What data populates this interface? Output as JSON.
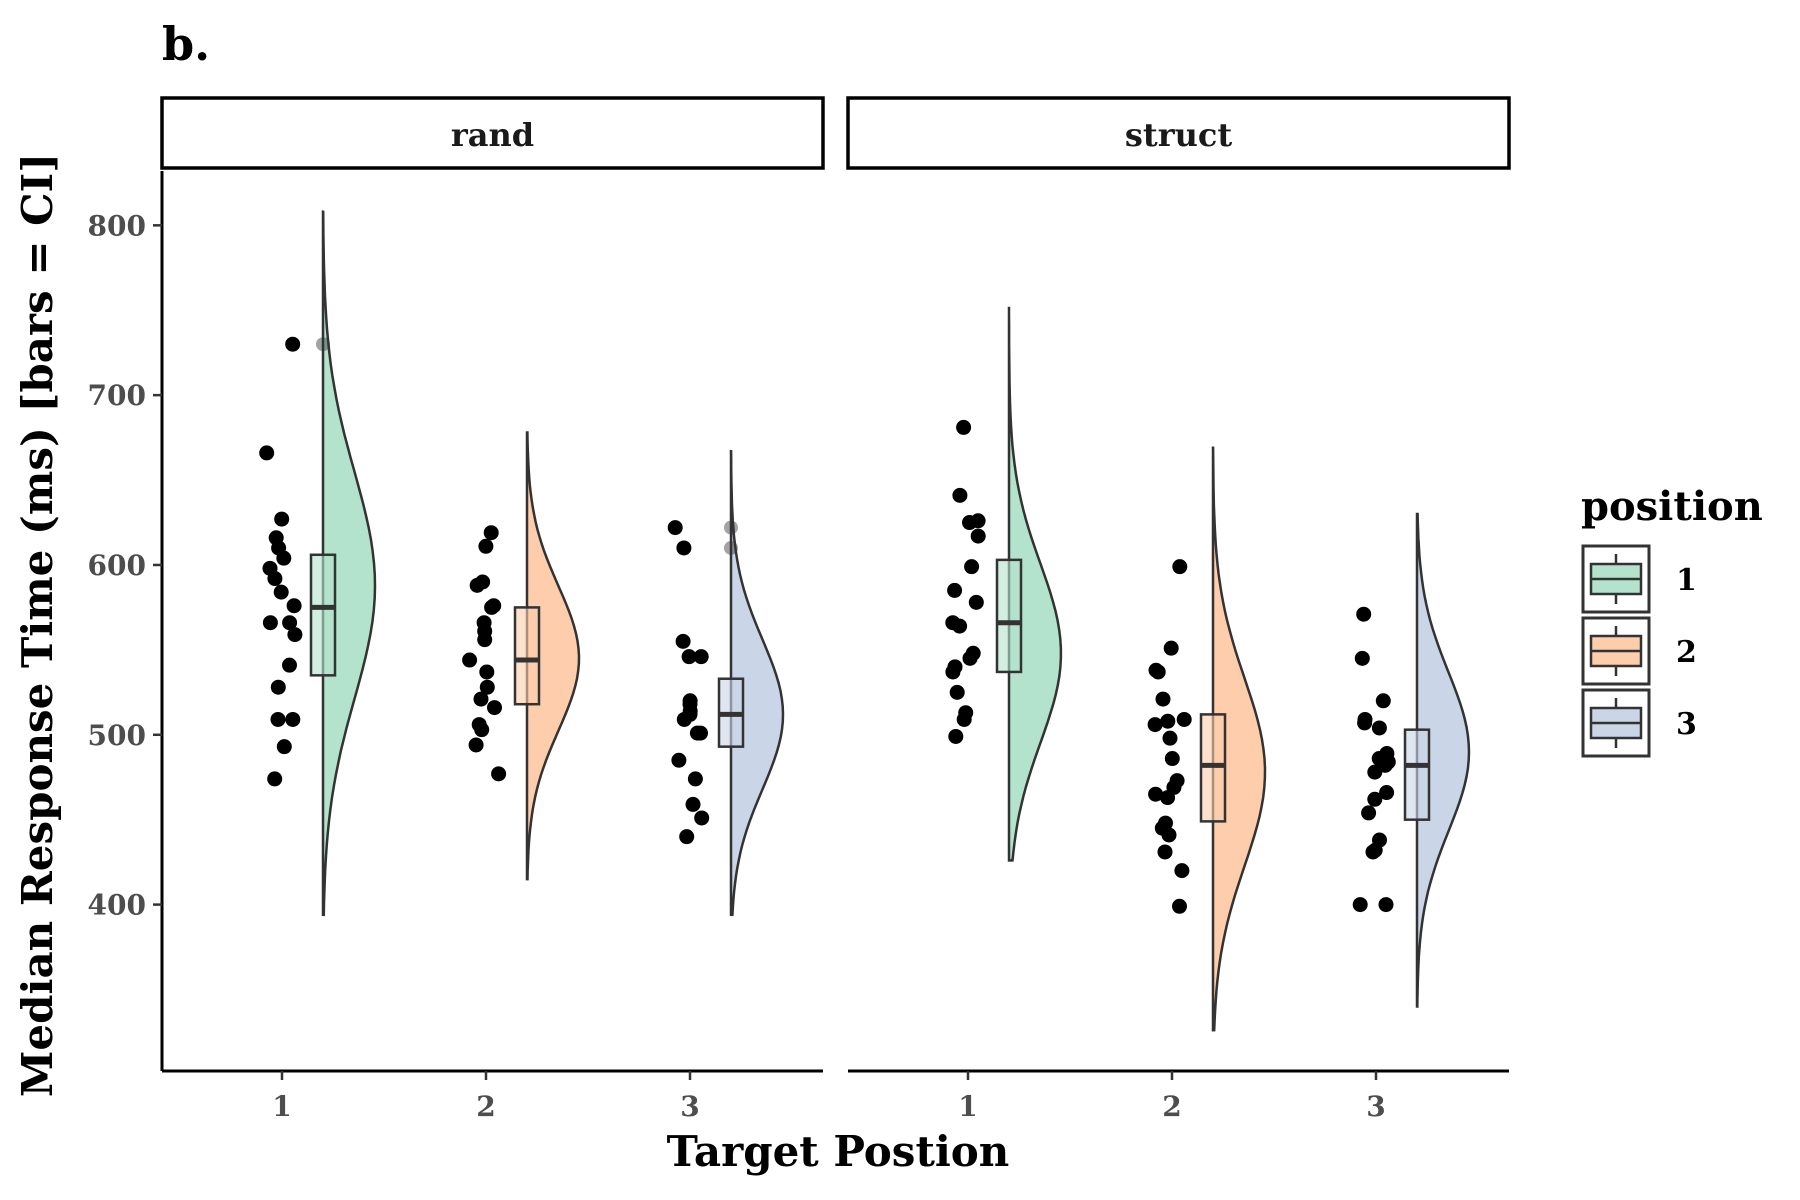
{
  "chart_data": {
    "type": "raincloud",
    "panel_tag": "b.",
    "xlabel": "Target Postion",
    "ylabel": "Median Response Time (ms) [bars = CI]",
    "ylim": [
      302,
      832
    ],
    "yticks": [
      400,
      500,
      600,
      700,
      800
    ],
    "categories": [
      "1",
      "2",
      "3"
    ],
    "legend": {
      "title": "position",
      "placement": "right",
      "entries": [
        {
          "label": "1",
          "color": "#b3e2cd"
        },
        {
          "label": "2",
          "color": "#fdcdac"
        },
        {
          "label": "3",
          "color": "#cbd5e8"
        }
      ]
    },
    "facets": [
      {
        "label": "rand",
        "groups": [
          {
            "position": "1",
            "points": [
              730,
              666,
              627,
              616,
              610,
              604,
              598,
              592,
              584,
              576,
              566,
              566,
              559,
              541,
              528,
              509,
              509,
              493,
              474
            ],
            "box": {
              "q1": 535,
              "median": 575,
              "q3": 606
            },
            "outliers": [
              730
            ],
            "violin_range": [
              394,
              808
            ],
            "violin_mode": 588
          },
          {
            "position": "2",
            "points": [
              619,
              611,
              590,
              588,
              576,
              575,
              566,
              561,
              556,
              544,
              537,
              528,
              521,
              516,
              506,
              503,
              494,
              477
            ],
            "box": {
              "q1": 518,
              "median": 544,
              "q3": 575
            },
            "outliers": [],
            "violin_range": [
              415,
              678
            ],
            "violin_mode": 545
          },
          {
            "position": "3",
            "points": [
              622,
              610,
              555,
              546,
              546,
              520,
              518,
              514,
              512,
              509,
              501,
              501,
              485,
              474,
              459,
              451,
              440
            ],
            "box": {
              "q1": 493,
              "median": 512,
              "q3": 533
            },
            "outliers": [
              622,
              610
            ],
            "violin_range": [
              394,
              667
            ],
            "violin_mode": 512
          }
        ]
      },
      {
        "label": "struct",
        "groups": [
          {
            "position": "1",
            "points": [
              681,
              641,
              626,
              625,
              617,
              599,
              585,
              578,
              566,
              564,
              548,
              545,
              540,
              537,
              525,
              513,
              509,
              499
            ],
            "box": {
              "q1": 537,
              "median": 566,
              "q3": 603
            },
            "outliers": [],
            "violin_range": [
              426,
              752
            ],
            "violin_mode": 548
          },
          {
            "position": "2",
            "points": [
              599,
              551,
              538,
              537,
              521,
              509,
              508,
              506,
              498,
              486,
              473,
              469,
              465,
              463,
              448,
              445,
              441,
              431,
              420,
              399
            ],
            "box": {
              "q1": 449,
              "median": 482,
              "q3": 512
            },
            "outliers": [],
            "violin_range": [
              326,
              669
            ],
            "violin_mode": 478
          },
          {
            "position": "3",
            "points": [
              571,
              545,
              520,
              509,
              507,
              504,
              489,
              486,
              484,
              482,
              478,
              466,
              462,
              454,
              438,
              432,
              431,
              400,
              400
            ],
            "box": {
              "q1": 450,
              "median": 482,
              "q3": 503
            },
            "outliers": [],
            "violin_range": [
              340,
              630
            ],
            "violin_mode": 490
          }
        ]
      }
    ]
  }
}
